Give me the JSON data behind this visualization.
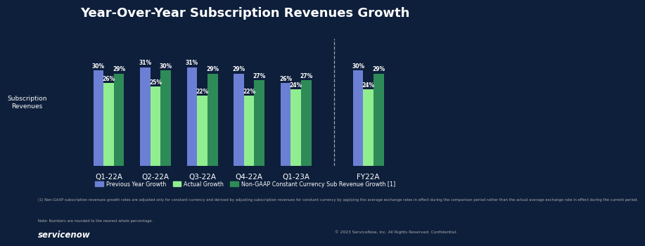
{
  "title": "Year-Over-Year Subscription Revenues Growth",
  "background_color": "#0e1f3b",
  "text_color": "#ffffff",
  "categories": [
    "Q1-22A",
    "Q2-22A",
    "Q3-22A",
    "Q4-22A",
    "Q1-23A"
  ],
  "fy_category": "FY22A",
  "prev_year_growth": [
    30,
    31,
    31,
    29,
    26
  ],
  "actual_growth": [
    26,
    25,
    22,
    22,
    24
  ],
  "nongaap_growth": [
    29,
    30,
    29,
    27,
    27
  ],
  "fy_prev_year": [
    30
  ],
  "fy_actual": [
    24
  ],
  "fy_nongaap": [
    29
  ],
  "bar_color_blue": "#6b7fd4",
  "bar_color_lightgreen": "#90ee90",
  "bar_color_darkgreen": "#2e8b57",
  "ylabel": "Subscription\nRevenues",
  "legend_label_blue": "Previous Year Growth",
  "legend_label_lgreen": "Actual Growth",
  "legend_label_dgreen": "Non-GAAP Constant Currency Sub Revenue Growth [1]",
  "footnote1": "(1) Non-GAAP subscription revenues growth rates are adjusted only for constant currency and derived by adjusting subscription revenues for constant currency by applying the average exchange rates in effect during the comparison period rather than the actual average exchange rate in effect during the current period.",
  "footnote2": "Note: Numbers are rounded to the nearest whole percentage.",
  "copyright": "© 2023 ServiceNow, Inc. All Rights Reserved. Confidential.",
  "ylim": [
    0,
    40
  ],
  "bar_width": 0.22
}
